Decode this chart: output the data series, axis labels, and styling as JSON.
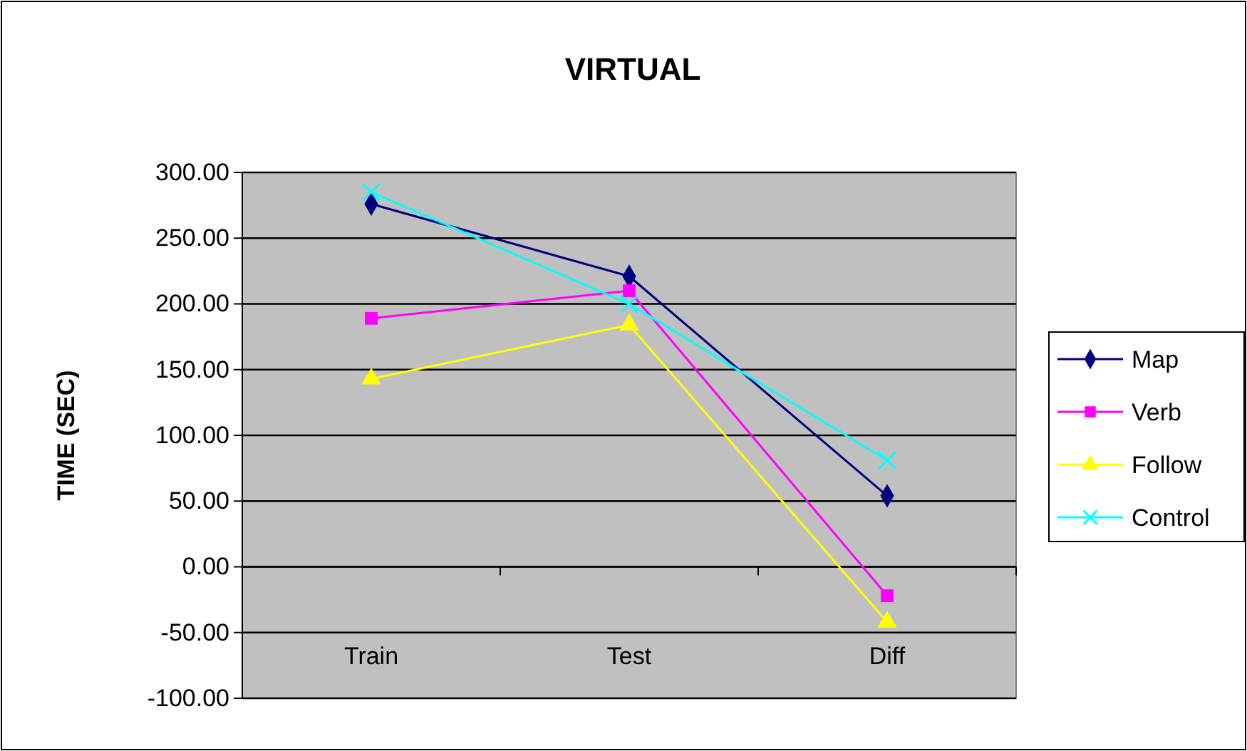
{
  "chart_data": {
    "type": "line",
    "title": "VIRTUAL",
    "ylabel": "TIME (SEC)",
    "categories": [
      "Train",
      "Test",
      "Diff"
    ],
    "series": [
      {
        "name": "Map",
        "color": "#000080",
        "marker": "diamond",
        "values": [
          276,
          221,
          54
        ]
      },
      {
        "name": "Verb",
        "color": "#ff00ff",
        "marker": "square",
        "values": [
          189,
          210,
          -22
        ]
      },
      {
        "name": "Follow",
        "color": "#ffff00",
        "marker": "triangle",
        "values": [
          143,
          184,
          -42
        ]
      },
      {
        "name": "Control",
        "color": "#00ffff",
        "marker": "cross",
        "values": [
          285,
          200,
          81
        ]
      }
    ],
    "ylim": [
      -100,
      300
    ],
    "yticks": [
      {
        "value": -100,
        "label": "-100.00"
      },
      {
        "value": -50,
        "label": "-50.00"
      },
      {
        "value": 0,
        "label": "0.00"
      },
      {
        "value": 50,
        "label": "50.00"
      },
      {
        "value": 100,
        "label": "100.00"
      },
      {
        "value": 150,
        "label": "150.00"
      },
      {
        "value": 200,
        "label": "200.00"
      },
      {
        "value": 250,
        "label": "250.00"
      },
      {
        "value": 300,
        "label": "300.00"
      }
    ],
    "grid": "y",
    "legend": "right"
  }
}
